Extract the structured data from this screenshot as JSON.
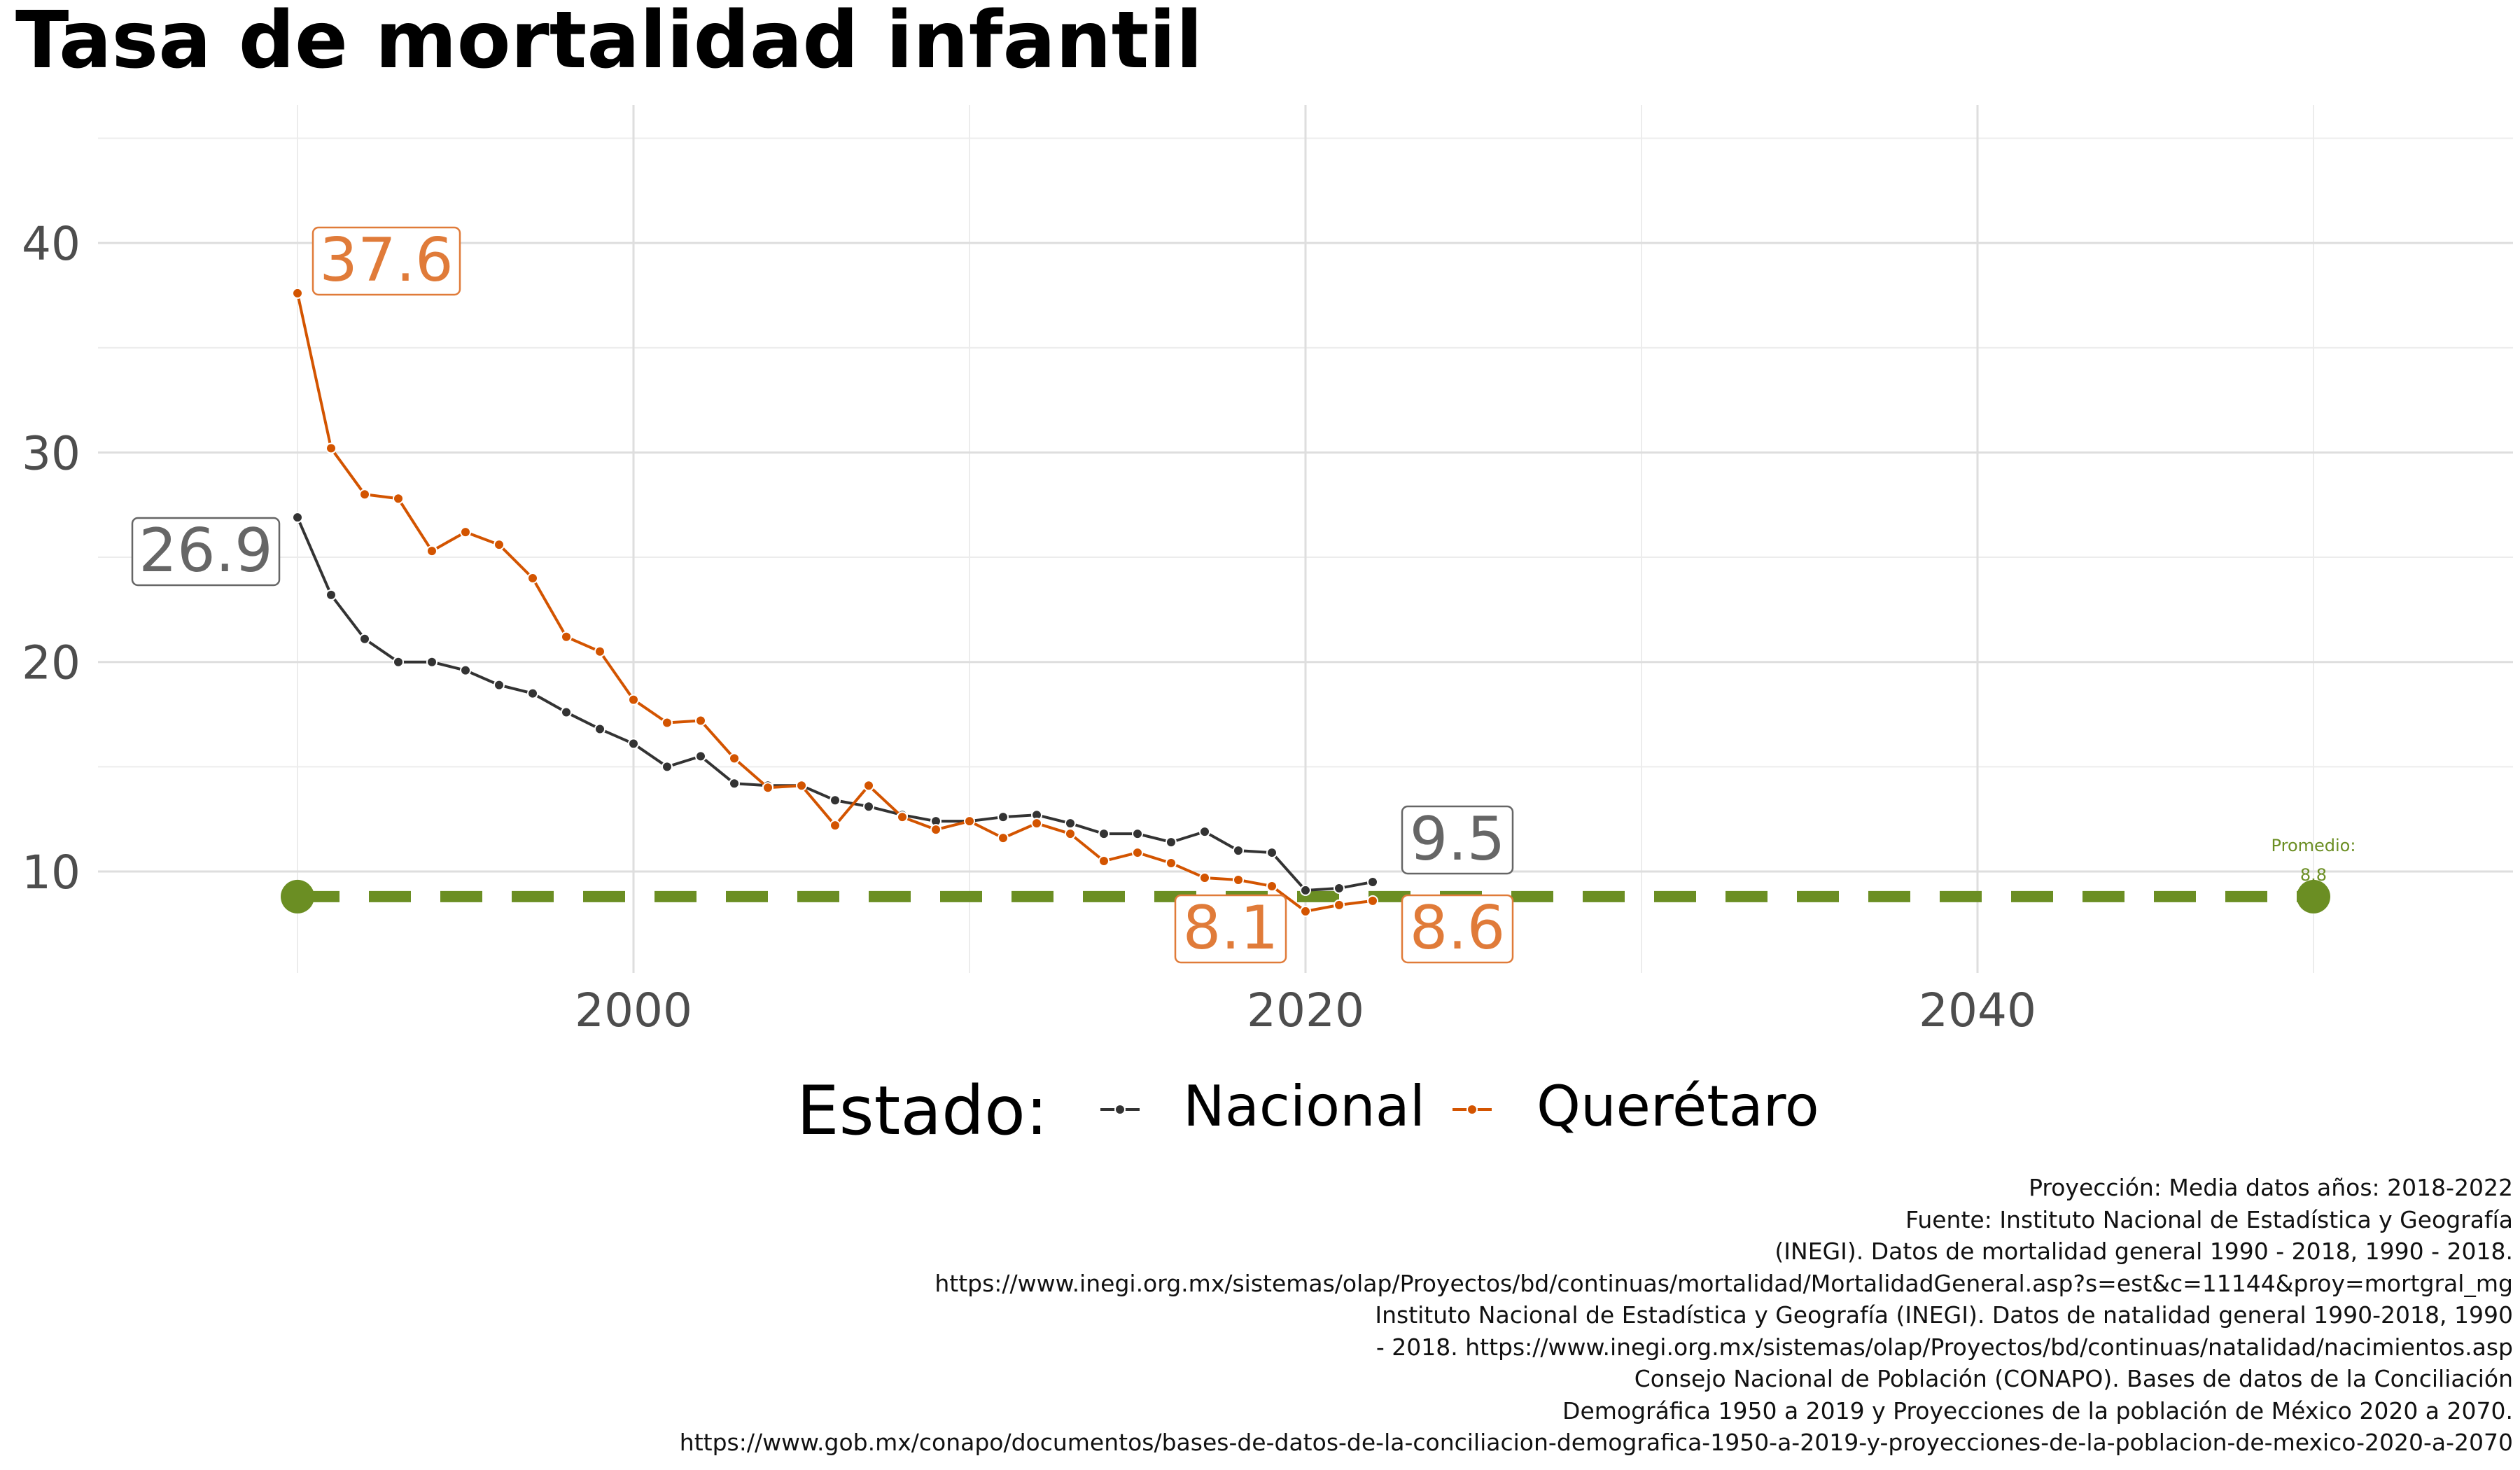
{
  "chart_data": {
    "type": "line",
    "title": "Tasa de mortalidad infantil",
    "xlabel": "",
    "ylabel": "",
    "xlim": [
      1985,
      2051
    ],
    "ylim": [
      5.5,
      45
    ],
    "x_ticks": [
      2000,
      2020,
      2040
    ],
    "y_ticks": [
      10,
      20,
      30,
      40
    ],
    "grid": true,
    "legend": {
      "title": "Estado:",
      "position": "bottom"
    },
    "series": [
      {
        "name": "Nacional",
        "color": "#333333",
        "x": [
          1990,
          1991,
          1992,
          1993,
          1994,
          1995,
          1996,
          1997,
          1998,
          1999,
          2000,
          2001,
          2002,
          2003,
          2004,
          2005,
          2006,
          2007,
          2008,
          2009,
          2010,
          2011,
          2012,
          2013,
          2014,
          2015,
          2016,
          2017,
          2018,
          2019,
          2020,
          2021,
          2022
        ],
        "values": [
          26.9,
          23.2,
          21.1,
          20.0,
          20.0,
          19.6,
          18.9,
          18.5,
          17.6,
          16.8,
          16.1,
          15.0,
          15.5,
          14.2,
          14.1,
          14.1,
          13.4,
          13.1,
          12.7,
          12.4,
          12.4,
          12.6,
          12.7,
          12.3,
          11.8,
          11.8,
          11.4,
          11.9,
          11.0,
          10.9,
          9.1,
          9.2,
          9.5
        ],
        "end_label": "9.5",
        "start_label": "26.9"
      },
      {
        "name": "Querétaro",
        "color": "#D35400",
        "x": [
          1990,
          1991,
          1992,
          1993,
          1994,
          1995,
          1996,
          1997,
          1998,
          1999,
          2000,
          2001,
          2002,
          2003,
          2004,
          2005,
          2006,
          2007,
          2008,
          2009,
          2010,
          2011,
          2012,
          2013,
          2014,
          2015,
          2016,
          2017,
          2018,
          2019,
          2020,
          2021,
          2022
        ],
        "values": [
          37.6,
          30.2,
          28.0,
          27.8,
          25.3,
          26.2,
          25.6,
          24.0,
          21.2,
          20.5,
          18.2,
          17.1,
          17.2,
          15.4,
          14.0,
          14.1,
          12.2,
          14.1,
          12.6,
          12.0,
          12.4,
          11.6,
          12.3,
          11.8,
          10.5,
          10.9,
          10.4,
          9.7,
          9.6,
          9.3,
          8.1,
          8.4,
          8.6
        ],
        "end_label": "8.6",
        "min_label": "8.1",
        "start_label": "37.6"
      }
    ],
    "average_line": {
      "value": 8.8,
      "x_start": 1990,
      "x_end": 2050,
      "color": "#6B8E23",
      "label": "Promedio:",
      "value_label": "8.8"
    }
  },
  "caption_lines": [
    "Proyección: Media datos años: 2018-2022",
    "Fuente: Instituto Nacional de Estadística y Geografía",
    "(INEGI). Datos de mortalidad general 1990 - 2018, 1990 - 2018.",
    "https://www.inegi.org.mx/sistemas/olap/Proyectos/bd/continuas/mortalidad/MortalidadGeneral.asp?s=est&c=11144&proy=mortgral_mg",
    "Instituto Nacional de Estadística y Geografía (INEGI). Datos de natalidad general 1990-2018, 1990",
    "- 2018. https://www.inegi.org.mx/sistemas/olap/Proyectos/bd/continuas/natalidad/nacimientos.asp",
    "Consejo Nacional de Población (CONAPO). Bases de datos de la Conciliación",
    "Demográfica 1950 a 2019 y Proyecciones de la población de México 2020 a 2070.",
    "https://www.gob.mx/conapo/documentos/bases-de-datos-de-la-conciliacion-demografica-1950-a-2019-y-proyecciones-de-la-poblacion-de-mexico-2020-a-2070"
  ]
}
